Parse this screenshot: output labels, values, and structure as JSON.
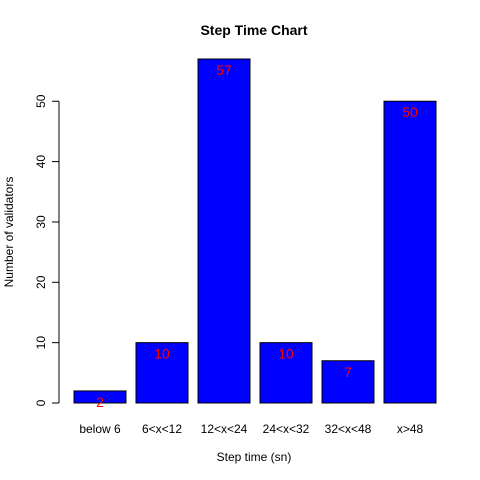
{
  "chart_data": {
    "type": "bar",
    "title": "Step Time Chart",
    "xlabel": "Step time (sn)",
    "ylabel": "Number of validators",
    "categories": [
      "below 6",
      "6<x<12",
      "12<x<24",
      "24<x<32",
      "32<x<48",
      "x>48"
    ],
    "values": [
      2,
      10,
      57,
      10,
      7,
      50
    ],
    "data_labels": [
      "2",
      "10",
      "57",
      "10",
      "7",
      "50"
    ],
    "ylim": [
      0,
      57
    ],
    "yticks": [
      0,
      10,
      20,
      30,
      40,
      50
    ],
    "ytick_labels": [
      "0",
      "10",
      "20",
      "30",
      "40",
      "50"
    ],
    "grid": false,
    "colors": {
      "bar_fill": "#0000ff",
      "bar_stroke": "#000000",
      "data_label": "#ff0000",
      "axis": "#000000"
    }
  }
}
